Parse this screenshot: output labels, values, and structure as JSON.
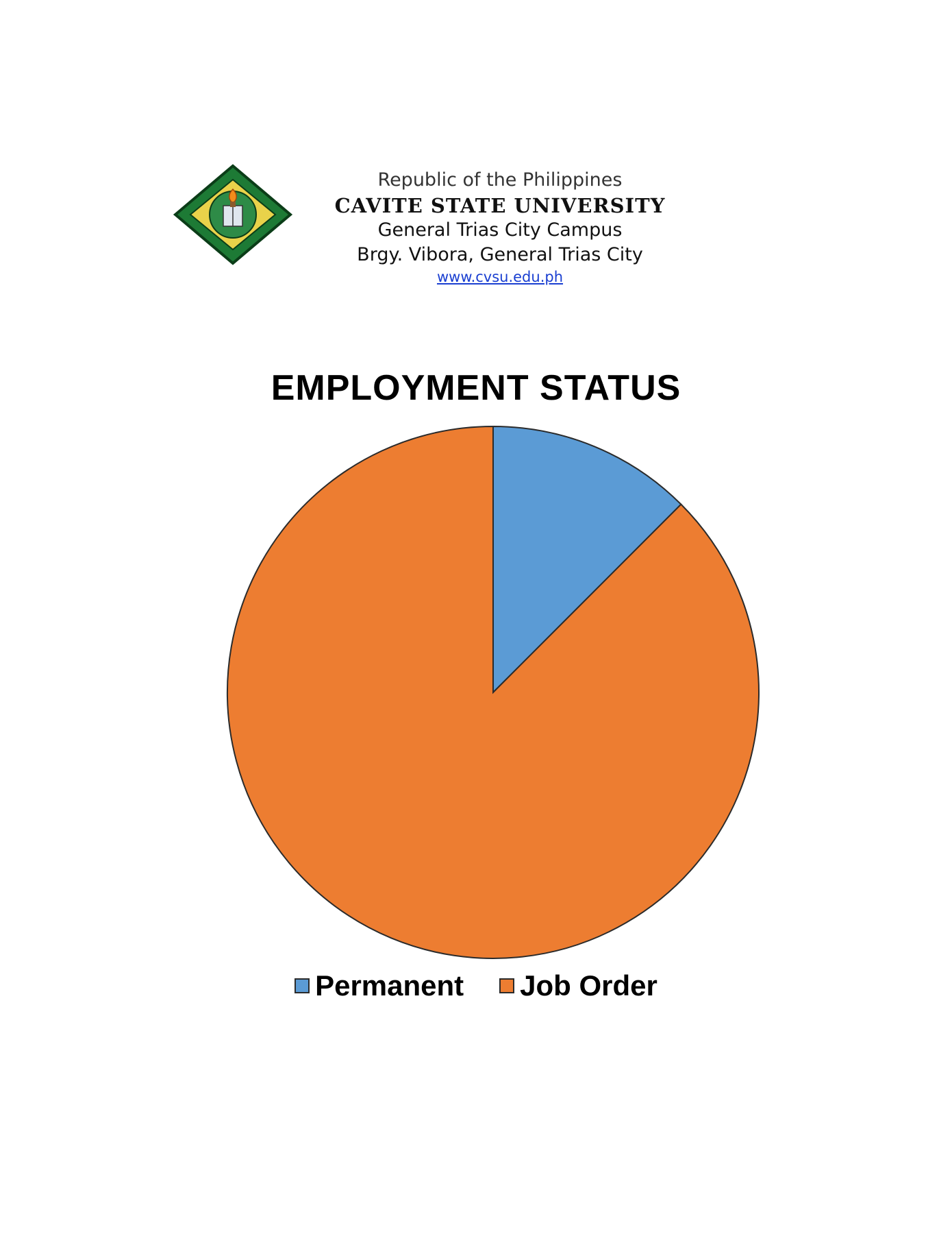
{
  "letterhead": {
    "line1": "Republic of the Philippines",
    "university": "CAVITE STATE UNIVERSITY",
    "campus": "General Trias City Campus",
    "address": "Brgy. Vibora, General Trias City",
    "website": "www.cvsu.edu.ph",
    "seal_icon": "university-seal-icon",
    "seal_colors": {
      "outer": "#0f6b2a",
      "inner": "#e8c93a"
    }
  },
  "chart_data": {
    "type": "pie",
    "title": "EMPLOYMENT STATUS",
    "categories": [
      "Permanent",
      "Job Order"
    ],
    "values": [
      12.5,
      87.5
    ],
    "colors": [
      "#5b9bd5",
      "#ed7d31"
    ],
    "start_angle": "12 o'clock",
    "direction": "clockwise",
    "legend_position": "bottom"
  }
}
